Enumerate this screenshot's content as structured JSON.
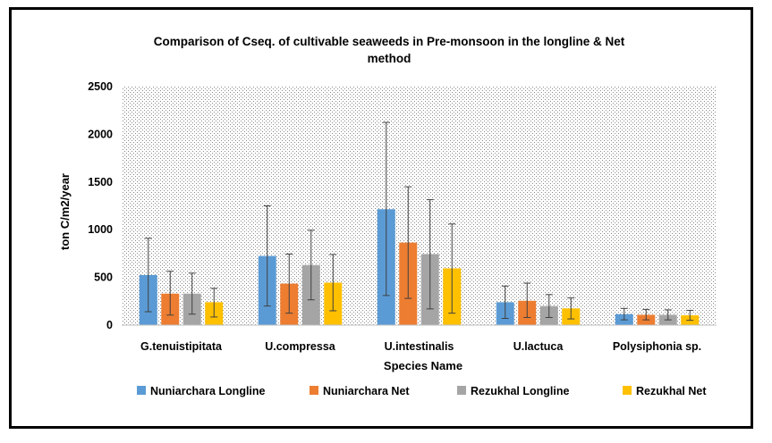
{
  "chart_data": {
    "type": "bar",
    "title_line1": "Comparison of Cseq. of cultivable seaweeds in Pre-monsoon in the longline & Net",
    "title_line2": "method",
    "xlabel": "Species Name",
    "ylabel": "ton C/m2/year",
    "ylim": [
      0,
      2500
    ],
    "yticks": [
      "0",
      "500",
      "1000",
      "1500",
      "2000",
      "2500"
    ],
    "ytick_values": [
      0,
      500,
      1000,
      1500,
      2000,
      2500
    ],
    "categories": [
      "G.tenuistipitata",
      "U.compressa",
      "U.intestinalis",
      "U.lactuca",
      "Polysiphonia sp."
    ],
    "series": [
      {
        "name": "Nuniarchara Longline",
        "color": "#5b9bd5",
        "values": [
          525,
          725,
          1215,
          240,
          115
        ],
        "err_low": [
          140,
          200,
          310,
          70,
          55
        ],
        "err_high": [
          910,
          1250,
          2125,
          410,
          175
        ]
      },
      {
        "name": "Nuniarchara Net",
        "color": "#ed7d31",
        "values": [
          330,
          435,
          865,
          255,
          108
        ],
        "err_low": [
          105,
          125,
          280,
          80,
          55
        ],
        "err_high": [
          565,
          745,
          1450,
          440,
          165
        ]
      },
      {
        "name": "Rezukhal Longline",
        "color": "#a5a5a5",
        "values": [
          330,
          630,
          745,
          200,
          108
        ],
        "err_low": [
          115,
          265,
          170,
          80,
          55
        ],
        "err_high": [
          545,
          995,
          1315,
          320,
          160
        ]
      },
      {
        "name": "Rezukhal Net",
        "color": "#ffc000",
        "values": [
          240,
          445,
          595,
          175,
          103
        ],
        "err_low": [
          85,
          150,
          125,
          65,
          50
        ],
        "err_high": [
          385,
          740,
          1060,
          285,
          155
        ]
      }
    ],
    "grid": false,
    "background": "dotted",
    "legend_position": "bottom"
  }
}
